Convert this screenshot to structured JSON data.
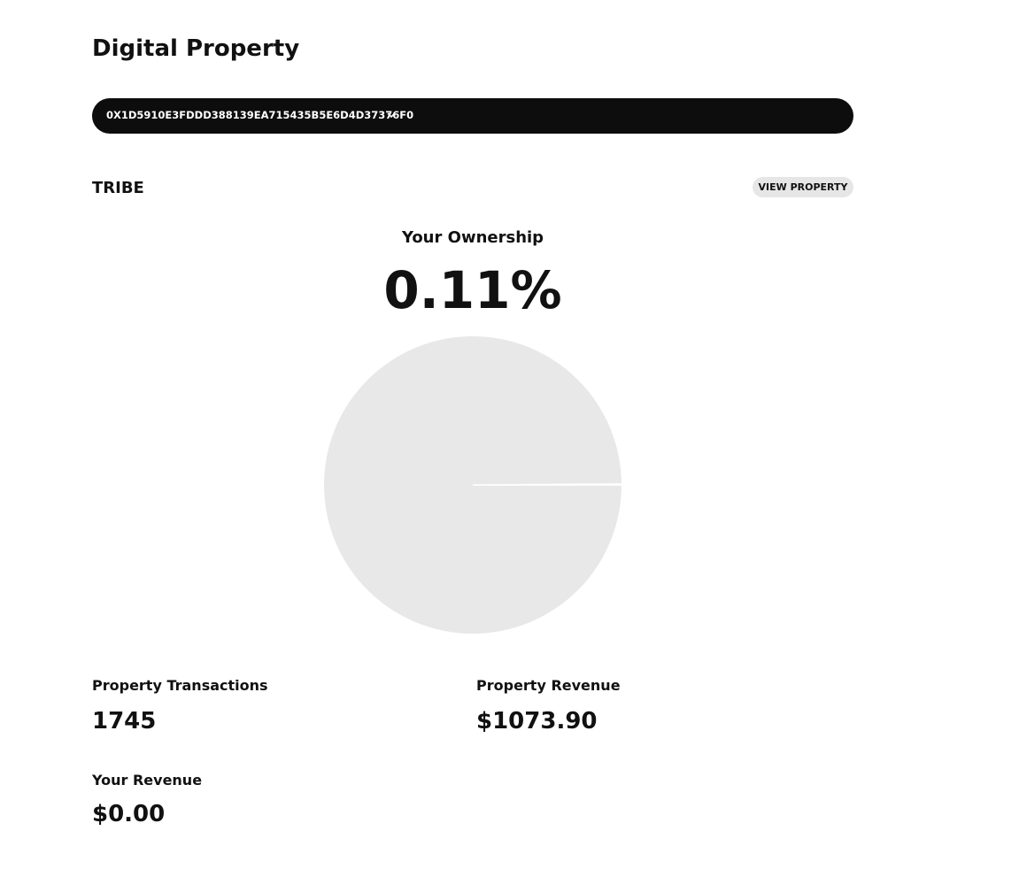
{
  "header": {
    "title": "Digital Property"
  },
  "wallet": {
    "address": "0X1D5910E3FDDD388139EA715435B5E6D4D37376F0"
  },
  "property": {
    "name": "TRIBE",
    "action": "VIEW PROPERTY"
  },
  "ownership": {
    "label": "Your Ownership",
    "value": 0.11,
    "value_label": "0.11%"
  },
  "stats": [
    {
      "label": "Property Transactions",
      "value": "1745"
    },
    {
      "label": "Property Revenue",
      "value": "$1073.90"
    },
    {
      "label": "Your Revenue",
      "value": "$0.00"
    }
  ]
}
